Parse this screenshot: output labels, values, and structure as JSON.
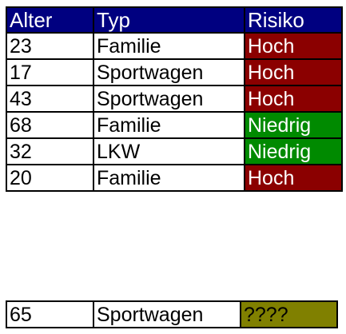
{
  "table": {
    "headers": [
      "Alter",
      "Typ",
      "Risiko"
    ],
    "header_background": "#000080",
    "rows": [
      {
        "age": "23",
        "type": "Familie",
        "risk": "Hoch",
        "risk_color": "#8B0000"
      },
      {
        "age": "17",
        "type": "Sportwagen",
        "risk": "Hoch",
        "risk_color": "#8B0000"
      },
      {
        "age": "43",
        "type": "Sportwagen",
        "risk": "Hoch",
        "risk_color": "#8B0000"
      },
      {
        "age": "68",
        "type": "Familie",
        "risk": "Niedrig",
        "risk_color": "#008A00"
      },
      {
        "age": "32",
        "type": "LKW",
        "risk": "Niedrig",
        "risk_color": "#008A00"
      },
      {
        "age": "20",
        "type": "Familie",
        "risk": "Hoch",
        "risk_color": "#8B0000"
      }
    ]
  },
  "query": {
    "age": "65",
    "type": "Sportwagen",
    "risk": "????",
    "risk_color": "#808000"
  }
}
